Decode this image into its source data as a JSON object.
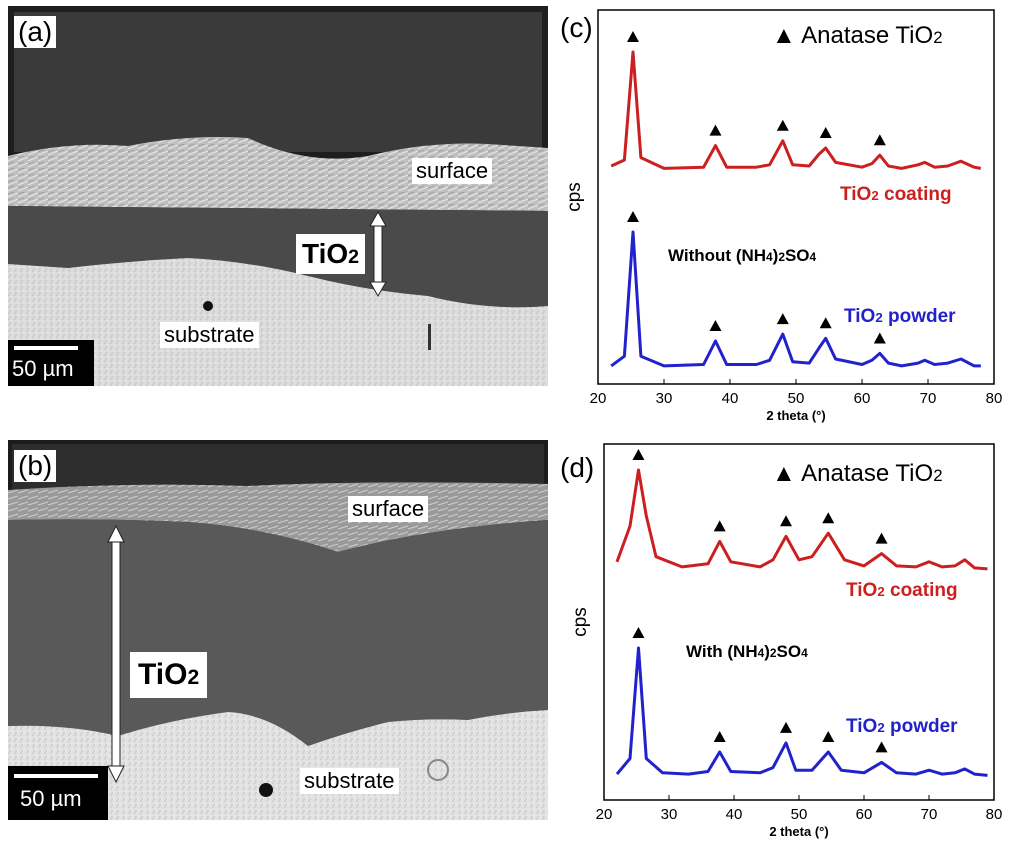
{
  "panels": {
    "a": {
      "label": "(a)",
      "surface": "surface",
      "layer": "TiO",
      "layer_sub": "2",
      "substrate": "substrate",
      "scale_bar": "50 µm"
    },
    "b": {
      "label": "(b)",
      "surface": "surface",
      "layer": "TiO",
      "layer_sub": "2",
      "substrate": "substrate",
      "scale_bar": "50 µm"
    }
  },
  "chart_data": [
    {
      "panel": "(c)",
      "type": "line",
      "xlabel": "2 theta (°)",
      "ylabel": "cps",
      "xlim": [
        20,
        80
      ],
      "xticks": [
        20,
        30,
        40,
        50,
        60,
        70,
        80
      ],
      "legend": "Anatase TiO2",
      "annotation": "Without (NH4)2SO4",
      "marker_peaks": [
        25.3,
        37.8,
        48.0,
        54.5,
        62.7
      ],
      "series": [
        {
          "name": "TiO2 coating",
          "color": "#cc1f1f",
          "x": [
            22,
            24,
            25.3,
            26.5,
            30,
            36,
            37.8,
            39.5,
            44,
            46,
            48.0,
            49.5,
            52,
            53.5,
            54.5,
            56,
            60,
            61.5,
            62.7,
            64,
            66,
            68.5,
            69.5,
            71,
            73,
            75,
            77,
            78
          ],
          "y": [
            0.05,
            0.1,
            1.0,
            0.12,
            0.03,
            0.04,
            0.22,
            0.04,
            0.04,
            0.06,
            0.26,
            0.06,
            0.05,
            0.15,
            0.2,
            0.08,
            0.04,
            0.07,
            0.14,
            0.05,
            0.03,
            0.06,
            0.08,
            0.04,
            0.05,
            0.09,
            0.04,
            0.03
          ]
        },
        {
          "name": "TiO2 powder",
          "color": "#2222cc",
          "x": [
            22,
            24,
            25.3,
            26.5,
            30,
            36,
            37.8,
            39.5,
            44,
            46,
            48.0,
            49.5,
            52,
            53.5,
            54.5,
            56,
            60,
            61.5,
            62.7,
            64,
            66,
            68.5,
            69.5,
            71,
            73,
            75,
            77,
            78
          ],
          "y": [
            0.03,
            0.1,
            1.0,
            0.1,
            0.03,
            0.04,
            0.21,
            0.04,
            0.04,
            0.07,
            0.26,
            0.06,
            0.05,
            0.16,
            0.23,
            0.08,
            0.04,
            0.07,
            0.12,
            0.05,
            0.03,
            0.05,
            0.07,
            0.04,
            0.05,
            0.08,
            0.03,
            0.03
          ]
        }
      ]
    },
    {
      "panel": "(d)",
      "type": "line",
      "xlabel": "2 theta (°)",
      "ylabel": "cps",
      "xlim": [
        20,
        80
      ],
      "xticks": [
        20,
        30,
        40,
        50,
        60,
        70,
        80
      ],
      "legend": "Anatase TiO2",
      "annotation": "With (NH4)2SO4",
      "marker_peaks": [
        25.3,
        37.8,
        48.0,
        54.5,
        62.7
      ],
      "series": [
        {
          "name": "TiO2 coating",
          "color": "#cc1f1f",
          "x": [
            22,
            24,
            25.3,
            26.5,
            28,
            32,
            36,
            37.8,
            39.5,
            44,
            46,
            48.0,
            50,
            52,
            54.5,
            57,
            60,
            62.7,
            65,
            68,
            70,
            72,
            74,
            75.5,
            77,
            79
          ],
          "y": [
            0.1,
            0.45,
            1.0,
            0.55,
            0.15,
            0.05,
            0.08,
            0.3,
            0.1,
            0.05,
            0.12,
            0.35,
            0.12,
            0.15,
            0.38,
            0.12,
            0.06,
            0.18,
            0.06,
            0.05,
            0.1,
            0.05,
            0.06,
            0.12,
            0.04,
            0.03
          ]
        },
        {
          "name": "TiO2 powder",
          "color": "#2222cc",
          "x": [
            22,
            24,
            25.3,
            26.5,
            29,
            33,
            36,
            37.8,
            39.5,
            44,
            46,
            48.0,
            49.5,
            52,
            54.5,
            56.5,
            60,
            62.7,
            65,
            68,
            70,
            72,
            74,
            75.5,
            77,
            79
          ],
          "y": [
            0.03,
            0.15,
            1.0,
            0.15,
            0.04,
            0.03,
            0.05,
            0.2,
            0.05,
            0.04,
            0.08,
            0.27,
            0.06,
            0.06,
            0.2,
            0.06,
            0.04,
            0.12,
            0.04,
            0.03,
            0.06,
            0.03,
            0.04,
            0.07,
            0.03,
            0.02
          ]
        }
      ]
    }
  ],
  "labels": {
    "c_panel": "(c)",
    "d_panel": "(d)",
    "legend_text": "Anatase TiO",
    "legend_sub": "2",
    "coating_main": "TiO",
    "coating_sub": "2",
    "coating_rest": " coating",
    "powder_main": "TiO",
    "powder_sub": "2",
    "powder_rest": " powder",
    "without_pre": "Without (NH",
    "with_pre": "With (NH",
    "nh_sub1": "4",
    "nh_mid": ")",
    "nh_sub2": "2",
    "nh_tail": "SO",
    "nh_sub3": "4",
    "xlabel": "2 theta (°)",
    "ylabel": "cps"
  },
  "colors": {
    "coating": "#cc1f1f",
    "powder": "#2222cc",
    "marker": "#000000"
  }
}
